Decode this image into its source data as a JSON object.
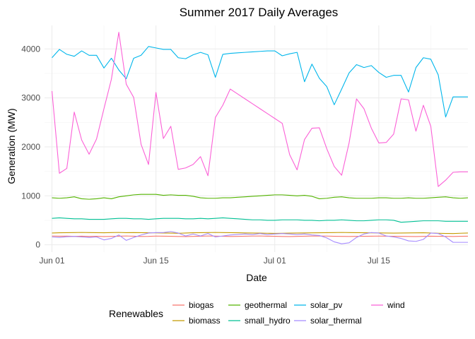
{
  "chart_data": {
    "type": "line",
    "title": "Summer 2017 Daily Averages",
    "xlabel": "Date",
    "ylabel": "Generation (MW)",
    "x_start": "2017-06-01",
    "xlim": [
      "2017-05-31",
      "2017-07-27"
    ],
    "ylim": [
      -150,
      4480
    ],
    "x_ticks": [
      {
        "date": "2017-06-01",
        "label": "Jun 01"
      },
      {
        "date": "2017-06-15",
        "label": "Jun 15"
      },
      {
        "date": "2017-07-01",
        "label": "Jul 01"
      },
      {
        "date": "2017-07-15",
        "label": "Jul 15"
      }
    ],
    "y_ticks": [
      0,
      1000,
      2000,
      3000,
      4000
    ],
    "y_tick_labels": [
      "0",
      "1000",
      "2000",
      "3000",
      "4000"
    ],
    "grid": true,
    "legend": {
      "title": "Renewables",
      "position": "bottom",
      "entries": [
        "biogas",
        "biomass",
        "geothermal",
        "small_hydro",
        "solar_pv",
        "solar_thermal",
        "wind"
      ]
    },
    "series": [
      {
        "name": "biogas",
        "color": "#F8766D",
        "values": [
          180,
          175,
          178,
          172,
          176,
          170,
          174,
          168,
          172,
          176,
          180,
          175,
          170,
          172,
          178,
          176,
          174,
          170,
          168,
          172,
          176,
          180,
          178,
          174,
          170,
          172,
          176,
          178,
          180,
          176,
          174,
          170,
          168,
          172,
          176,
          178,
          180,
          178,
          174,
          172,
          170,
          172,
          174,
          176,
          178,
          176,
          174,
          172,
          170,
          168,
          172,
          176,
          174,
          172,
          170,
          174,
          176
        ]
      },
      {
        "name": "biomass",
        "color": "#C49A00",
        "values": [
          240,
          245,
          248,
          250,
          252,
          250,
          248,
          246,
          250,
          252,
          248,
          250,
          248,
          246,
          244,
          240,
          238,
          235,
          240,
          245,
          248,
          250,
          252,
          250,
          248,
          245,
          242,
          240,
          238,
          236,
          234,
          236,
          238,
          240,
          242,
          244,
          246,
          248,
          250,
          252,
          250,
          248,
          246,
          244,
          242,
          240,
          238,
          240,
          242,
          244,
          246,
          240,
          236,
          232,
          230,
          236,
          240
        ]
      },
      {
        "name": "geothermal",
        "color": "#53B400",
        "values": [
          960,
          950,
          960,
          980,
          940,
          930,
          940,
          960,
          940,
          980,
          1000,
          1020,
          1030,
          1030,
          1030,
          1010,
          1020,
          1010,
          1010,
          990,
          960,
          950,
          950,
          960,
          960,
          970,
          980,
          990,
          1000,
          1010,
          1020,
          1020,
          1010,
          1000,
          1010,
          990,
          940,
          950,
          970,
          980,
          960,
          950,
          950,
          950,
          960,
          960,
          950,
          950,
          960,
          950,
          950,
          960,
          970,
          980,
          960,
          950,
          960
        ]
      },
      {
        "name": "small_hydro",
        "color": "#00C094",
        "values": [
          540,
          550,
          540,
          530,
          530,
          520,
          520,
          520,
          530,
          540,
          540,
          530,
          530,
          520,
          530,
          540,
          540,
          540,
          530,
          530,
          540,
          530,
          540,
          550,
          540,
          530,
          520,
          510,
          510,
          500,
          500,
          510,
          510,
          510,
          500,
          500,
          490,
          500,
          500,
          510,
          500,
          490,
          490,
          500,
          510,
          510,
          500,
          460,
          470,
          480,
          490,
          490,
          490,
          480,
          480,
          480,
          480
        ]
      },
      {
        "name": "solar_pv",
        "color": "#00B6EB",
        "values": [
          3820,
          3990,
          3890,
          3850,
          3960,
          3870,
          3870,
          3610,
          3810,
          3570,
          3390,
          3810,
          3870,
          4050,
          4020,
          3990,
          3990,
          3820,
          3800,
          3880,
          3930,
          3880,
          3420,
          3890,
          3910,
          3920,
          3930,
          3940,
          3950,
          3960,
          3960,
          3860,
          3900,
          3930,
          3330,
          3690,
          3400,
          3230,
          2860,
          3180,
          3510,
          3680,
          3620,
          3660,
          3520,
          3420,
          3460,
          3460,
          3120,
          3620,
          3820,
          3790,
          3470,
          2610,
          3020,
          3020,
          3020
        ]
      },
      {
        "name": "solar_thermal",
        "color": "#A58AFF",
        "values": [
          160,
          150,
          165,
          170,
          160,
          150,
          160,
          100,
          130,
          200,
          90,
          150,
          200,
          240,
          250,
          250,
          270,
          240,
          180,
          220,
          180,
          230,
          160,
          180,
          200,
          210,
          220,
          210,
          230,
          210,
          220,
          230,
          220,
          210,
          220,
          200,
          190,
          140,
          60,
          20,
          40,
          150,
          220,
          250,
          240,
          180,
          160,
          130,
          80,
          70,
          110,
          240,
          230,
          160,
          50,
          50,
          50
        ]
      },
      {
        "name": "wind",
        "color": "#FB61D7",
        "values": [
          3140,
          1460,
          1560,
          2710,
          2140,
          1850,
          2160,
          2780,
          3380,
          4340,
          3280,
          3010,
          2050,
          1640,
          3110,
          2170,
          2420,
          1540,
          1570,
          1640,
          1800,
          1410,
          2600,
          2850,
          3180,
          3080,
          2980,
          2880,
          2780,
          2680,
          2580,
          2480,
          1840,
          1530,
          2150,
          2380,
          2390,
          1960,
          1600,
          1420,
          2080,
          2980,
          2780,
          2380,
          2080,
          2090,
          2260,
          2980,
          2960,
          2320,
          2850,
          2420,
          1190,
          1320,
          1480,
          1490,
          1490
        ]
      }
    ]
  }
}
